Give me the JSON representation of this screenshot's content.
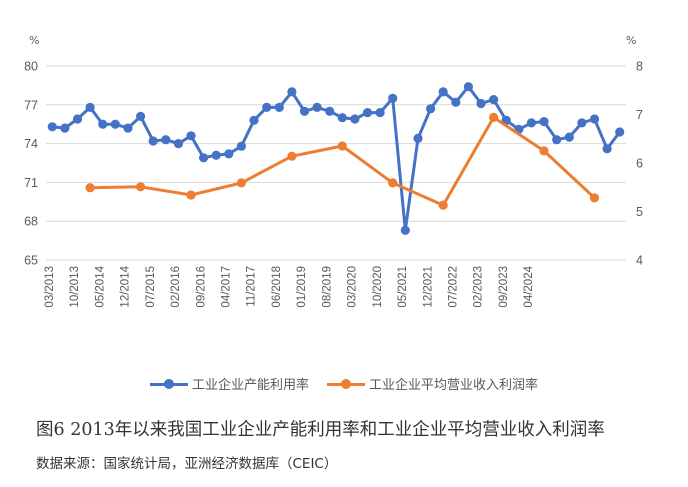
{
  "caption": "图6 2013年以来我国工业企业产能利用率和工业企业平均营业收入利润率",
  "source": "数据来源：国家统计局，亚洲经济数据库（CEIC）",
  "colors": {
    "blue": "#4472C4",
    "orange": "#ED7D31",
    "grid": "#D9D9D9"
  },
  "chart_data": {
    "type": "line",
    "left_axis": {
      "unit": "%",
      "ylim": [
        65,
        80
      ],
      "ticks": [
        65,
        68,
        71,
        74,
        77,
        80
      ]
    },
    "right_axis": {
      "unit": "%",
      "ylim": [
        4,
        8
      ],
      "ticks": [
        4,
        5,
        6,
        7,
        8
      ]
    },
    "x_tick_labels": [
      "03/2013",
      "10/2013",
      "05/2014",
      "12/2014",
      "07/2015",
      "02/2016",
      "09/2016",
      "04/2017",
      "11/2017",
      "06/2018",
      "01/2019",
      "08/2019",
      "03/2020",
      "10/2020",
      "05/2021",
      "12/2021",
      "07/2022",
      "02/2023",
      "09/2023",
      "04/2024"
    ],
    "grid": "horizontal",
    "legend_position": "bottom",
    "series": [
      {
        "name": "工业企业产能利用率",
        "axis": "left",
        "color": "#4472C4",
        "x": [
          "2013Q1",
          "2013Q2",
          "2013Q3",
          "2013Q4",
          "2014Q1",
          "2014Q2",
          "2014Q3",
          "2014Q4",
          "2015Q1",
          "2015Q2",
          "2015Q3",
          "2015Q4",
          "2016Q1",
          "2016Q2",
          "2016Q3",
          "2016Q4",
          "2017Q1",
          "2017Q2",
          "2017Q3",
          "2017Q4",
          "2018Q1",
          "2018Q2",
          "2018Q3",
          "2018Q4",
          "2019Q1",
          "2019Q2",
          "2019Q3",
          "2019Q4",
          "2020Q1",
          "2020Q2",
          "2020Q3",
          "2020Q4",
          "2021Q1",
          "2021Q2",
          "2021Q3",
          "2021Q4",
          "2022Q1",
          "2022Q2",
          "2022Q3",
          "2022Q4",
          "2023Q1",
          "2023Q2",
          "2023Q3",
          "2023Q4",
          "2024Q1",
          "2024Q2"
        ],
        "values": [
          75.3,
          75.2,
          75.9,
          76.8,
          75.5,
          75.5,
          75.2,
          76.1,
          74.2,
          74.3,
          74.0,
          74.6,
          72.9,
          73.1,
          73.2,
          73.8,
          75.8,
          76.8,
          76.8,
          78.0,
          76.5,
          76.8,
          76.5,
          76.0,
          75.9,
          76.4,
          76.4,
          77.5,
          67.3,
          74.4,
          76.7,
          78.0,
          77.2,
          78.4,
          77.1,
          77.4,
          75.8,
          75.1,
          75.6,
          75.7,
          74.3,
          74.5,
          75.6,
          75.9,
          73.6,
          74.9
        ]
      },
      {
        "name": "工业企业平均营业收入利润率",
        "axis": "right",
        "color": "#ED7D31",
        "x": [
          "2013Q4",
          "2014Q4",
          "2015Q4",
          "2016Q4",
          "2017Q4",
          "2018Q4",
          "2019Q4",
          "2020Q4",
          "2021Q4",
          "2022Q4",
          "2023Q4"
        ],
        "values": [
          5.49,
          5.51,
          5.34,
          5.59,
          6.14,
          6.35,
          5.59,
          5.13,
          6.94,
          6.25,
          5.28
        ]
      }
    ]
  }
}
